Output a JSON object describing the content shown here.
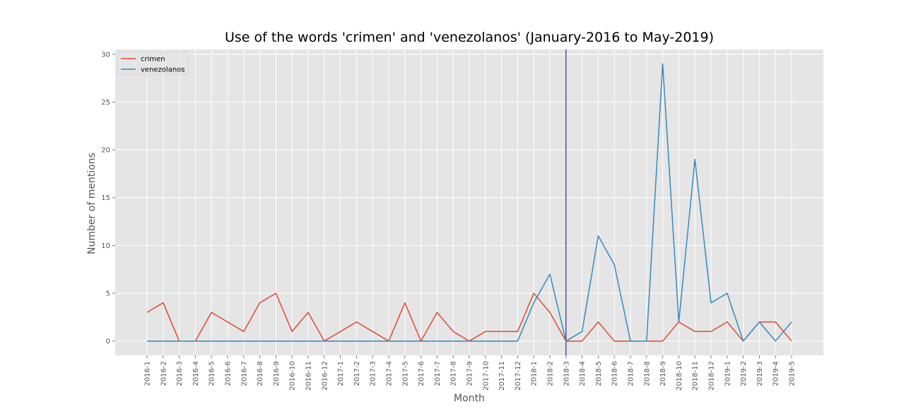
{
  "chart_data": {
    "type": "line",
    "title": "Use of the words 'crimen' and 'venezolanos' (January-2016 to May-2019)",
    "xlabel": "Month",
    "ylabel": "Number of mentions",
    "ylim": [
      -1.5,
      30.5
    ],
    "yticks": [
      0,
      5,
      10,
      15,
      20,
      25,
      30
    ],
    "grid": true,
    "legend_position": "top-left",
    "vertical_marker": {
      "category": "2018-3",
      "color": "#00008b"
    },
    "categories": [
      "2016-1",
      "2016-2",
      "2016-3",
      "2016-4",
      "2016-5",
      "2016-6",
      "2016-7",
      "2016-8",
      "2016-9",
      "2016-10",
      "2016-11",
      "2016-12",
      "2017-1",
      "2017-2",
      "2017-3",
      "2017-4",
      "2017-5",
      "2017-6",
      "2017-7",
      "2017-8",
      "2017-9",
      "2017-10",
      "2017-11",
      "2017-12",
      "2018-1",
      "2018-2",
      "2018-3",
      "2018-4",
      "2018-5",
      "2018-6",
      "2018-7",
      "2018-8",
      "2018-9",
      "2018-10",
      "2018-11",
      "2018-12",
      "2019-1",
      "2019-2",
      "2019-3",
      "2019-4",
      "2019-5"
    ],
    "series": [
      {
        "name": "crimen",
        "color": "#e24a33",
        "values": [
          3,
          4,
          0,
          0,
          3,
          2,
          1,
          4,
          5,
          1,
          3,
          0,
          1,
          2,
          1,
          0,
          4,
          0,
          3,
          1,
          0,
          1,
          1,
          1,
          5,
          3,
          0,
          0,
          2,
          0,
          0,
          0,
          0,
          2,
          1,
          1,
          2,
          0,
          2,
          2,
          0
        ]
      },
      {
        "name": "venezolanos",
        "color": "#348abd",
        "values": [
          0,
          0,
          0,
          0,
          0,
          0,
          0,
          0,
          0,
          0,
          0,
          0,
          0,
          0,
          0,
          0,
          0,
          0,
          0,
          0,
          0,
          0,
          0,
          0,
          4,
          7,
          0,
          1,
          11,
          8,
          0,
          0,
          29,
          2,
          19,
          4,
          5,
          0,
          2,
          0,
          2
        ]
      }
    ]
  }
}
